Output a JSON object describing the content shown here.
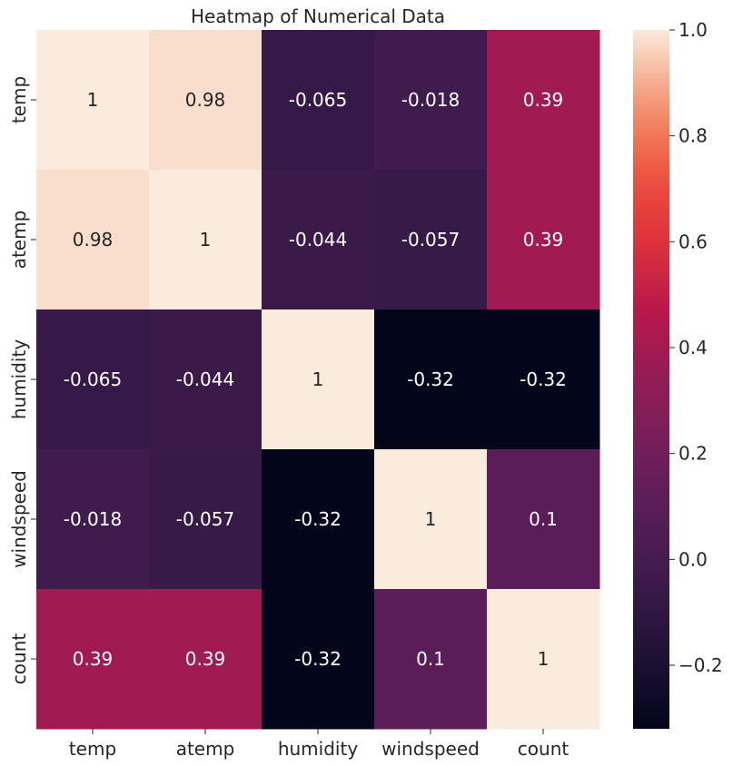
{
  "chart_data": {
    "type": "heatmap",
    "title": "Heatmap of Numerical Data",
    "x_labels": [
      "temp",
      "atemp",
      "humidity",
      "windspeed",
      "count"
    ],
    "y_labels": [
      "temp",
      "atemp",
      "humidity",
      "windspeed",
      "count"
    ],
    "values": [
      [
        1,
        0.98,
        -0.065,
        -0.018,
        0.39
      ],
      [
        0.98,
        1,
        -0.044,
        -0.057,
        0.39
      ],
      [
        -0.065,
        -0.044,
        1,
        -0.32,
        -0.32
      ],
      [
        -0.018,
        -0.057,
        -0.32,
        1,
        0.1
      ],
      [
        0.39,
        0.39,
        -0.32,
        0.1,
        1
      ]
    ],
    "annotations": [
      [
        "1",
        "0.98",
        "-0.065",
        "-0.018",
        "0.39"
      ],
      [
        "0.98",
        "1",
        "-0.044",
        "-0.057",
        "0.39"
      ],
      [
        "-0.065",
        "-0.044",
        "1",
        "-0.32",
        "-0.32"
      ],
      [
        "-0.018",
        "-0.057",
        "-0.32",
        "1",
        "0.1"
      ],
      [
        "0.39",
        "0.39",
        "-0.32",
        "0.1",
        "1"
      ]
    ],
    "colorbar": {
      "range": [
        -0.32,
        1.0
      ],
      "ticks": [
        1.0,
        0.8,
        0.6,
        0.4,
        0.2,
        0.0,
        -0.2
      ],
      "tick_labels": [
        "1.0",
        "0.8",
        "0.6",
        "0.4",
        "0.2",
        "0.0",
        "−0.2"
      ],
      "colormap": "rocket"
    },
    "grid": false
  }
}
